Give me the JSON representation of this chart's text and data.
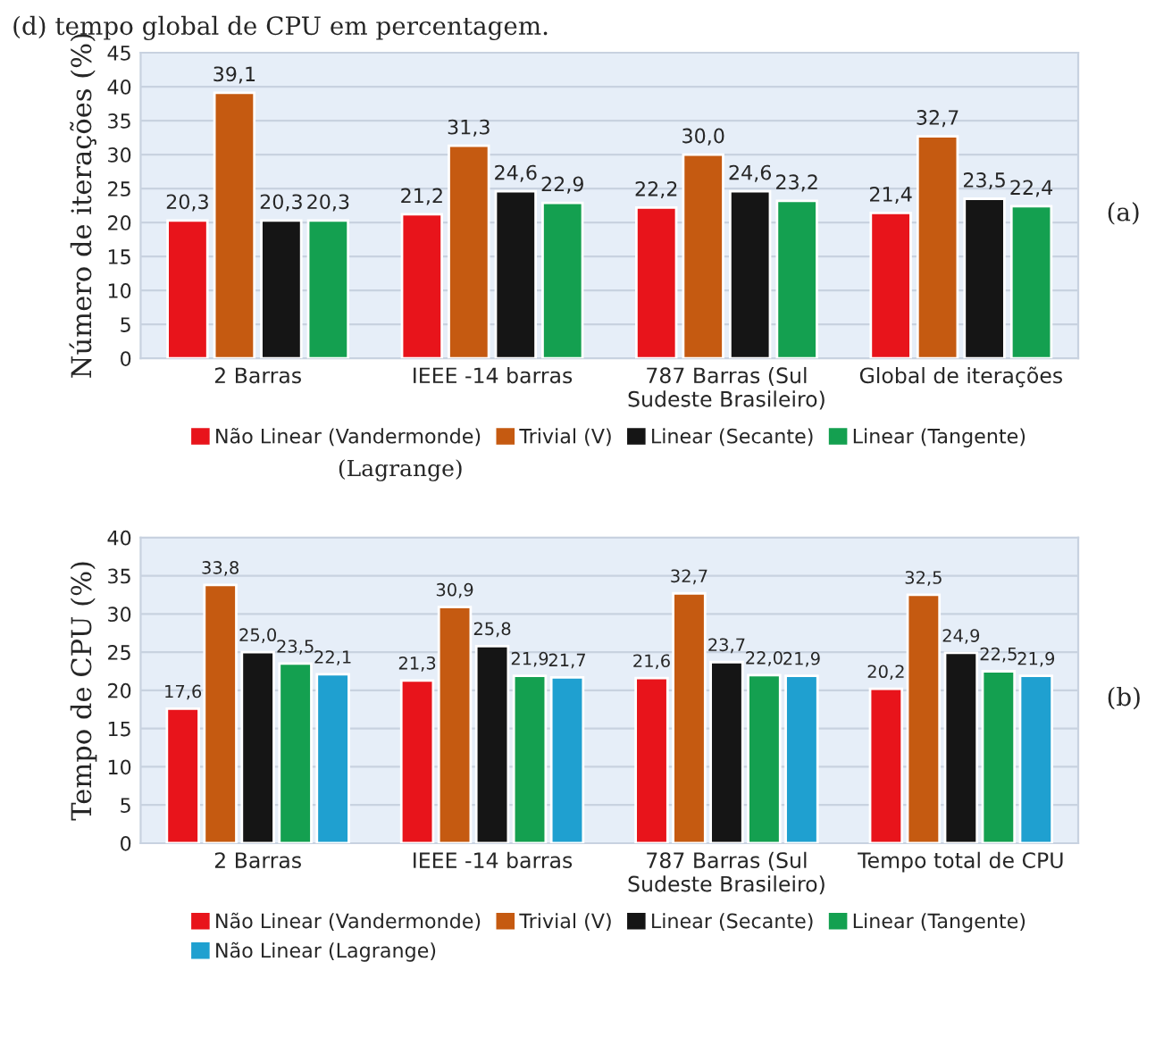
{
  "chart_data": [
    {
      "type": "bar",
      "ylabel": "Número de iterações (%)",
      "annotations": [
        "(d) tempo global de CPU em percentagem.",
        "(Lagrange)",
        "(a)"
      ],
      "categories": [
        "2 Barras",
        "IEEE -14 barras",
        "787 Barras (Sul\nSudeste Brasileiro)",
        "Global de iterações"
      ],
      "series": [
        {
          "name": "Não Linear (Vandermonde)",
          "color": "#e8141b",
          "values": [
            20.3,
            21.2,
            22.2,
            21.4
          ],
          "value_labels": [
            "20,3",
            "21,2",
            "22,2",
            "21,4"
          ]
        },
        {
          "name": "Trivial (V)",
          "color": "#c55a11",
          "values": [
            39.1,
            31.3,
            30.0,
            32.7
          ],
          "value_labels": [
            "39,1",
            "31,3",
            "30,0",
            "32,7"
          ]
        },
        {
          "name": "Linear (Secante)",
          "color": "#151515",
          "values": [
            20.3,
            24.6,
            24.6,
            23.5
          ],
          "value_labels": [
            "20,3",
            "24,6",
            "24,6",
            "23,5"
          ]
        },
        {
          "name": "Linear (Tangente)",
          "color": "#14a050",
          "values": [
            20.3,
            22.9,
            23.2,
            22.4
          ],
          "value_labels": [
            "20,3",
            "22,9",
            "23,2",
            "22,4"
          ]
        }
      ],
      "ylim": [
        0,
        45
      ],
      "yticks": [
        0,
        5,
        10,
        15,
        20,
        25,
        30,
        35,
        40,
        45
      ],
      "grid": "y",
      "legend": "bottom"
    },
    {
      "type": "bar",
      "ylabel": "Tempo de CPU (%)",
      "annotations": [
        "(b)"
      ],
      "categories": [
        "2 Barras",
        "IEEE -14 barras",
        "787 Barras (Sul\nSudeste Brasileiro)",
        "Tempo total de CPU"
      ],
      "series": [
        {
          "name": "Não Linear (Vandermonde)",
          "color": "#e8141b",
          "values": [
            17.6,
            21.3,
            21.6,
            20.2
          ],
          "value_labels": [
            "17,6",
            "21,3",
            "21,6",
            "20,2"
          ]
        },
        {
          "name": "Trivial (V)",
          "color": "#c55a11",
          "values": [
            33.8,
            30.9,
            32.7,
            32.5
          ],
          "value_labels": [
            "33,8",
            "30,9",
            "32,7",
            "32,5"
          ]
        },
        {
          "name": "Linear (Secante)",
          "color": "#151515",
          "values": [
            25.0,
            25.8,
            23.7,
            24.9
          ],
          "value_labels": [
            "25,0",
            "25,8",
            "23,7",
            "24,9"
          ]
        },
        {
          "name": "Linear (Tangente)",
          "color": "#14a050",
          "values": [
            23.5,
            21.9,
            22.0,
            22.5
          ],
          "value_labels": [
            "23,5",
            "21,9",
            "22,0",
            "22,5"
          ]
        },
        {
          "name": "Não Linear (Lagrange)",
          "color": "#1fa0d0",
          "values": [
            22.1,
            21.7,
            21.9,
            21.9
          ],
          "value_labels": [
            "22,1",
            "21,7",
            "21,9",
            "21,9"
          ]
        }
      ],
      "ylim": [
        0,
        40
      ],
      "yticks": [
        0,
        5,
        10,
        15,
        20,
        25,
        30,
        35,
        40
      ],
      "grid": "y",
      "legend": "bottom"
    }
  ]
}
